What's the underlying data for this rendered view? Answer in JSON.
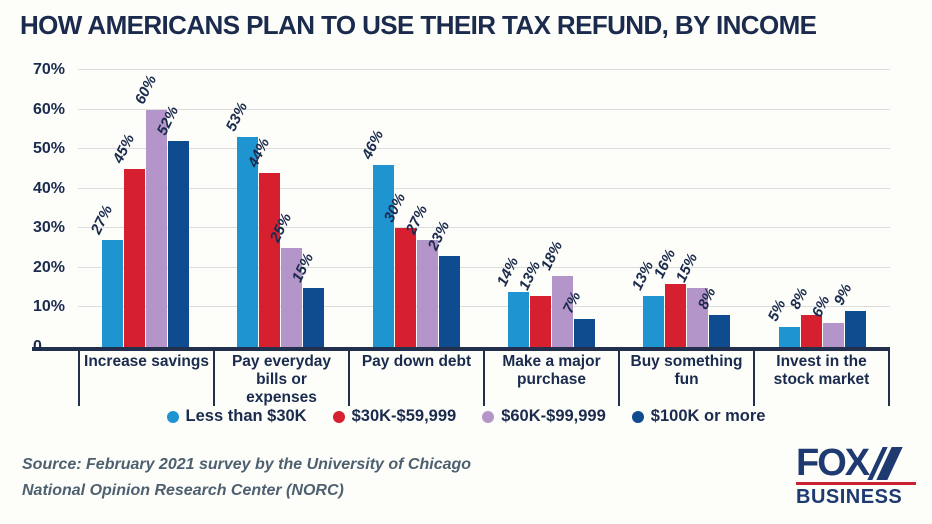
{
  "title": "HOW AMERICANS PLAN TO USE THEIR TAX REFUND, BY INCOME",
  "chart_data": {
    "type": "bar",
    "title": "HOW AMERICANS PLAN TO USE THEIR TAX REFUND, BY INCOME",
    "categories": [
      "Increase savings",
      "Pay everyday bills or expenses",
      "Pay down debt",
      "Make a major purchase",
      "Buy something fun",
      "Invest in the stock market"
    ],
    "series": [
      {
        "name": "Less than $30K",
        "color": "#1e95d0",
        "values": [
          27,
          53,
          46,
          14,
          13,
          5
        ]
      },
      {
        "name": "$30K-$59,999",
        "color": "#d6202f",
        "values": [
          45,
          44,
          30,
          13,
          16,
          8
        ]
      },
      {
        "name": "$60K-$99,999",
        "color": "#b495c9",
        "values": [
          60,
          25,
          27,
          18,
          15,
          6
        ]
      },
      {
        "name": "$100K or more",
        "color": "#0e4c8f",
        "values": [
          52,
          15,
          23,
          7,
          8,
          9
        ]
      }
    ],
    "y_ticks": [
      {
        "label": "70%",
        "value": 70
      },
      {
        "label": "60%",
        "value": 60
      },
      {
        "label": "50%",
        "value": 50
      },
      {
        "label": "40%",
        "value": 40
      },
      {
        "label": "30%",
        "value": 30
      },
      {
        "label": "20%",
        "value": 20
      },
      {
        "label": "10%",
        "value": 10
      },
      {
        "label": "0",
        "value": 0
      }
    ],
    "ylim": [
      0,
      70
    ],
    "value_suffix": "%",
    "grid": "horizontal",
    "legend_position": "bottom"
  },
  "source": {
    "line1": "Source: February 2021 survey by the University of Chicago",
    "line2": "National Opinion Research Center (NORC)"
  },
  "logo": {
    "word": "FOX",
    "sub": "BUSINESS"
  },
  "colors": {
    "title_text": "#1b2b4d",
    "axis_text": "#1b2b4d",
    "gridline": "#dcdcdc",
    "axis_line": "#22304d",
    "source_text": "#4e6070",
    "logo_navy": "#1e3a70",
    "logo_red": "#cb2030",
    "background": "#fdfdfa"
  }
}
